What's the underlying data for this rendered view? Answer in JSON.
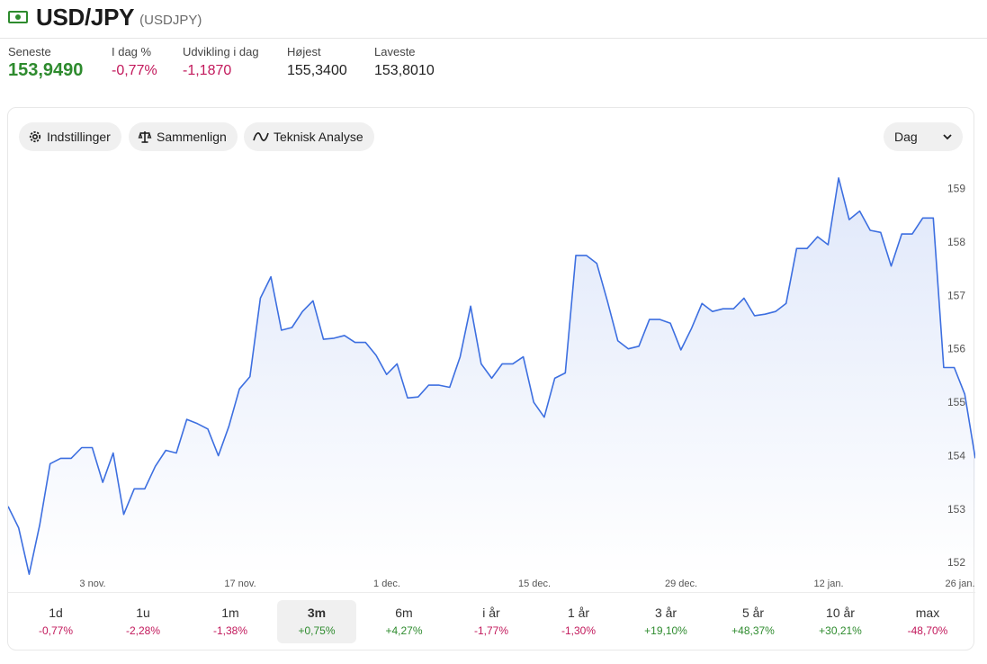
{
  "header": {
    "title": "USD/JPY",
    "symbol": "(USDJPY)",
    "icon": "banknote-icon"
  },
  "stats": [
    {
      "label": "Seneste",
      "value": "153,9490",
      "style": "big"
    },
    {
      "label": "I dag %",
      "value": "-0,77%",
      "style": "neg"
    },
    {
      "label": "Udvikling i dag",
      "value": "-1,1870",
      "style": "neg"
    },
    {
      "label": "Højest",
      "value": "155,3400",
      "style": ""
    },
    {
      "label": "Laveste",
      "value": "153,8010",
      "style": ""
    }
  ],
  "toolbar": {
    "settings": "Indstillinger",
    "compare": "Sammenlign",
    "technical": "Teknisk Analyse",
    "period": "Dag"
  },
  "colors": {
    "line": "#3d6fe0",
    "positive": "#2e8b2e",
    "negative": "#c2185b"
  },
  "chart_data": {
    "type": "area",
    "x_tick_labels": [
      "3 nov.",
      "17 nov.",
      "1 dec.",
      "15 dec.",
      "29 dec.",
      "12 jan.",
      "26 jan."
    ],
    "y_ticks": [
      152,
      153,
      154,
      155,
      156,
      157,
      158,
      159
    ],
    "ylim": [
      151.75,
      159.5
    ],
    "y_axis_position": "right",
    "grid": false,
    "values": [
      153.05,
      152.65,
      151.78,
      152.7,
      153.85,
      153.95,
      153.95,
      154.15,
      154.15,
      153.5,
      154.05,
      152.9,
      153.38,
      153.38,
      153.8,
      154.1,
      154.05,
      154.68,
      154.6,
      154.5,
      154.0,
      154.55,
      155.25,
      155.48,
      156.95,
      157.35,
      156.35,
      156.4,
      156.7,
      156.9,
      156.18,
      156.2,
      156.25,
      156.12,
      156.12,
      155.88,
      155.52,
      155.72,
      155.08,
      155.1,
      155.32,
      155.32,
      155.28,
      155.85,
      156.8,
      155.72,
      155.45,
      155.72,
      155.72,
      155.85,
      155.0,
      154.72,
      155.45,
      155.55,
      157.75,
      157.75,
      157.6,
      156.9,
      156.15,
      156.0,
      156.05,
      156.55,
      156.55,
      156.48,
      155.98,
      156.38,
      156.85,
      156.7,
      156.75,
      156.75,
      156.95,
      156.62,
      156.65,
      156.7,
      156.85,
      157.88,
      157.88,
      158.1,
      157.95,
      159.2,
      158.42,
      158.58,
      158.22,
      158.18,
      157.55,
      158.15,
      158.15,
      158.45,
      158.45,
      155.65,
      155.65,
      155.15,
      153.95
    ]
  },
  "ranges": [
    {
      "label": "1d",
      "change": "-0,77%",
      "dir": "neg"
    },
    {
      "label": "1u",
      "change": "-2,28%",
      "dir": "neg"
    },
    {
      "label": "1m",
      "change": "-1,38%",
      "dir": "neg"
    },
    {
      "label": "3m",
      "change": "+0,75%",
      "dir": "pos",
      "active": true
    },
    {
      "label": "6m",
      "change": "+4,27%",
      "dir": "pos"
    },
    {
      "label": "i år",
      "change": "-1,77%",
      "dir": "neg"
    },
    {
      "label": "1 år",
      "change": "-1,30%",
      "dir": "neg"
    },
    {
      "label": "3 år",
      "change": "+19,10%",
      "dir": "pos"
    },
    {
      "label": "5 år",
      "change": "+48,37%",
      "dir": "pos"
    },
    {
      "label": "10 år",
      "change": "+30,21%",
      "dir": "pos"
    },
    {
      "label": "max",
      "change": "-48,70%",
      "dir": "neg"
    }
  ]
}
